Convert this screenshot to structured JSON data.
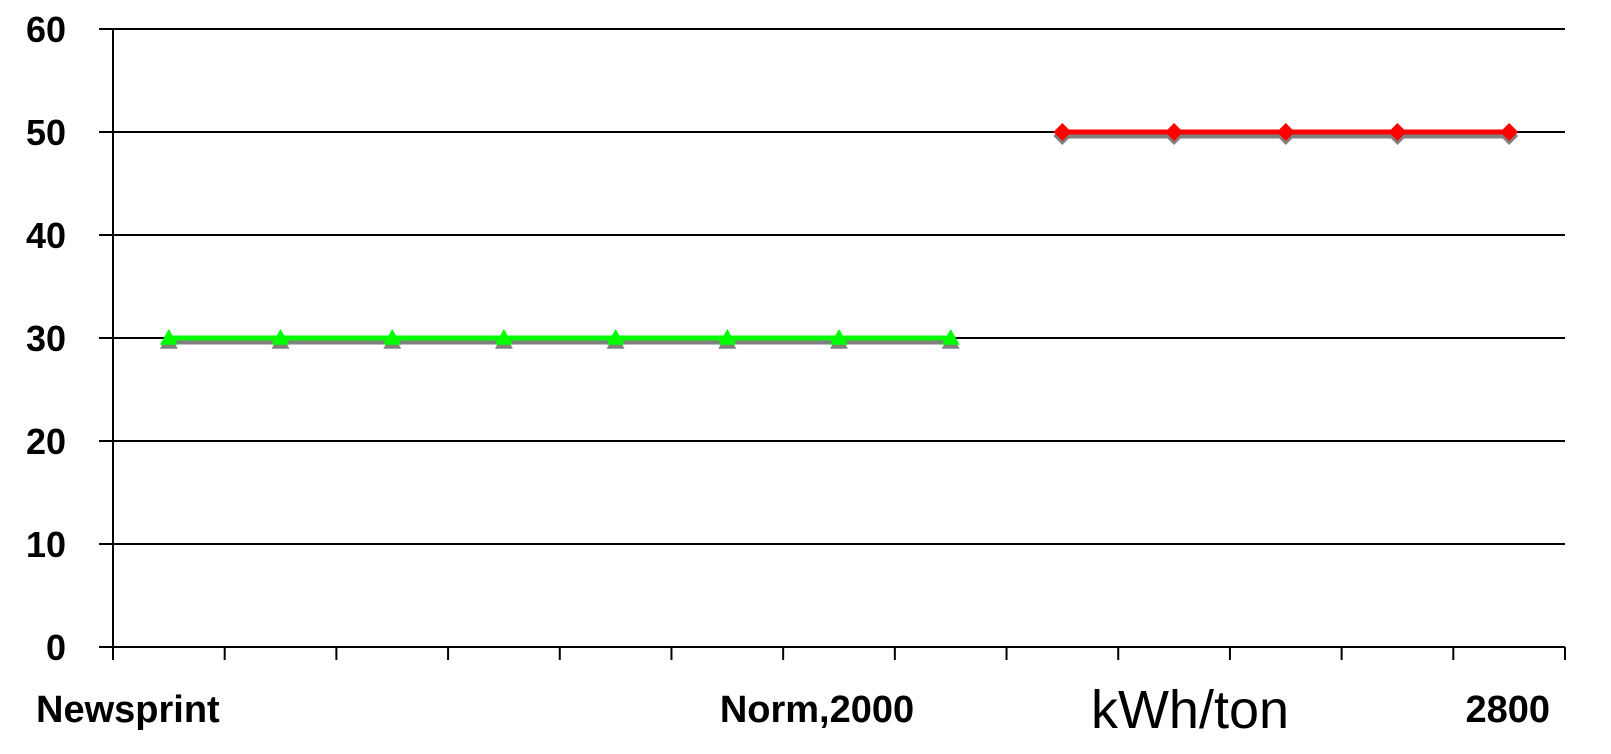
{
  "chart_data": {
    "type": "line",
    "title": "",
    "xlabel": "kWh/ton",
    "ylabel": "",
    "ylim": [
      0,
      60
    ],
    "yticks": [
      0,
      10,
      20,
      30,
      40,
      50,
      60
    ],
    "x_category_count": 13,
    "x_category_labels": [
      {
        "text": "Newsprint",
        "align": "start"
      },
      {
        "text": "Norm,2000",
        "align": "middle"
      },
      {
        "text": "2800",
        "align": "end"
      }
    ],
    "grid": true,
    "legend": "none",
    "series": [
      {
        "color": "#00ff00",
        "shadow_color": "#808080",
        "marker": "triangle",
        "x_index": [
          0,
          1,
          2,
          3,
          4,
          5,
          6,
          7
        ],
        "values": [
          30,
          30,
          30,
          30,
          30,
          30,
          30,
          30
        ]
      },
      {
        "color": "#ff0000",
        "shadow_color": "#808080",
        "marker": "diamond",
        "x_index": [
          8,
          9,
          10,
          11,
          12
        ],
        "values": [
          50,
          50,
          50,
          50,
          50
        ]
      }
    ]
  }
}
